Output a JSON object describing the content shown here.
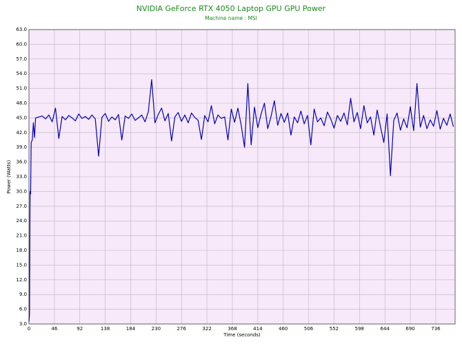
{
  "chart_data": {
    "type": "line",
    "title": "NVIDIA GeForce RTX 4050 Laptop GPU GPU Power",
    "subtitle": "Machine name : MSI",
    "x_label": "Time (seconds)",
    "y_label": "Power (Watts)",
    "grid": true,
    "background": "#f7e8fa",
    "xlim": [
      0,
      771
    ],
    "xticks": [
      0,
      46,
      92,
      138,
      184,
      230,
      276,
      322,
      368,
      414,
      460,
      506,
      552,
      598,
      644,
      690,
      736
    ],
    "ylim": [
      3,
      63
    ],
    "yticks": [
      {
        "value": 3,
        "label": "3.0"
      },
      {
        "value": 6,
        "label": "6.0"
      },
      {
        "value": 9,
        "label": "9.0"
      },
      {
        "value": 12,
        "label": "12.0"
      },
      {
        "value": 15,
        "label": "15.0"
      },
      {
        "value": 18,
        "label": "18.0"
      },
      {
        "value": 21,
        "label": "21.0"
      },
      {
        "value": 24,
        "label": "24.0"
      },
      {
        "value": 27,
        "label": "27.0"
      },
      {
        "value": 30,
        "label": "30.0"
      },
      {
        "value": 33,
        "label": "33.0"
      },
      {
        "value": 36,
        "label": "36.0"
      },
      {
        "value": 39,
        "label": "39.0"
      },
      {
        "value": 42,
        "label": "42.0"
      },
      {
        "value": 45,
        "label": "45.0"
      },
      {
        "value": 48,
        "label": "48.0"
      },
      {
        "value": 51,
        "label": "51.0"
      },
      {
        "value": 54,
        "label": "54.0"
      },
      {
        "value": 57,
        "label": "57.0"
      },
      {
        "value": 60,
        "label": "60.0"
      },
      {
        "value": 63,
        "label": "63.0"
      }
    ],
    "x": [
      0,
      1,
      2,
      3,
      4,
      6,
      8,
      10,
      12,
      18,
      24,
      30,
      36,
      42,
      48,
      54,
      60,
      66,
      72,
      78,
      84,
      90,
      96,
      102,
      108,
      114,
      120,
      126,
      132,
      138,
      144,
      150,
      156,
      162,
      168,
      174,
      180,
      186,
      192,
      198,
      204,
      210,
      216,
      222,
      228,
      234,
      240,
      246,
      252,
      258,
      264,
      270,
      276,
      282,
      288,
      294,
      300,
      306,
      312,
      318,
      324,
      330,
      336,
      342,
      348,
      354,
      360,
      366,
      372,
      378,
      384,
      390,
      396,
      402,
      408,
      414,
      420,
      426,
      432,
      438,
      444,
      450,
      456,
      462,
      468,
      474,
      480,
      486,
      492,
      498,
      504,
      510,
      516,
      522,
      528,
      534,
      540,
      546,
      552,
      558,
      564,
      570,
      576,
      582,
      588,
      594,
      600,
      606,
      612,
      618,
      624,
      630,
      636,
      642,
      648,
      654,
      660,
      666,
      672,
      678,
      684,
      690,
      696,
      702,
      708,
      714,
      720,
      726,
      732,
      738,
      744,
      750,
      756,
      762,
      768
    ],
    "series": [
      {
        "color": "#0000b4",
        "values": [
          3.5,
          5,
          30,
          29.5,
          40,
          40.5,
          44,
          41,
          45,
          45.2,
          45.4,
          44.8,
          45.6,
          44.2,
          47.0,
          40.8,
          45.3,
          44.6,
          45.5,
          45.0,
          44.4,
          45.8,
          44.9,
          45.3,
          44.7,
          45.6,
          44.8,
          37.2,
          45.1,
          45.9,
          44.3,
          45.2,
          44.6,
          45.7,
          40.5,
          45.4,
          44.9,
          45.8,
          44.5,
          45.0,
          45.6,
          44.2,
          46.3,
          52.8,
          44.0,
          45.7,
          47.0,
          44.4,
          45.9,
          40.3,
          45.2,
          46.1,
          44.3,
          45.6,
          44.0,
          46.0,
          45.1,
          44.5,
          40.6,
          45.5,
          44.2,
          47.5,
          43.8,
          45.6,
          44.9,
          45.2,
          40.5,
          46.8,
          44.1,
          47.0,
          43.5,
          39.0,
          52.0,
          39.5,
          47.2,
          43.0,
          45.8,
          48.0,
          42.8,
          45.3,
          48.5,
          43.5,
          45.9,
          44.1,
          46.0,
          41.5,
          45.2,
          44.0,
          46.4,
          43.8,
          45.5,
          39.5,
          46.8,
          44.2,
          45.0,
          43.4,
          46.2,
          44.8,
          42.9,
          45.5,
          44.3,
          46.0,
          43.6,
          49.0,
          44.2,
          46.1,
          42.8,
          47.5,
          44.0,
          45.2,
          41.5,
          46.6,
          43.2,
          40.0,
          45.8,
          33.2,
          44.5,
          46.0,
          42.5,
          44.8,
          43.0,
          47.3,
          42.4,
          52.0,
          43.1,
          45.5,
          42.8,
          44.6,
          43.3,
          46.5,
          42.7,
          44.9,
          43.5,
          45.8,
          43.2
        ]
      }
    ]
  }
}
